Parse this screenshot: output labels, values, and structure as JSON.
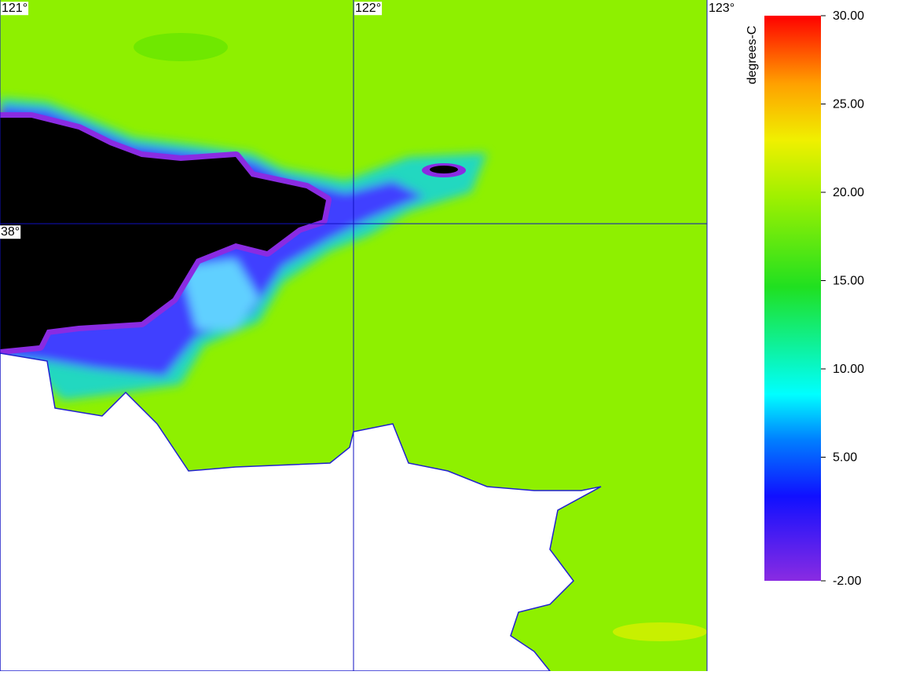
{
  "map": {
    "lon_lines": [
      {
        "value": 121,
        "label": "121°"
      },
      {
        "value": 122,
        "label": "122°"
      },
      {
        "value": 123,
        "label": "123°"
      }
    ],
    "lat_lines": [
      {
        "value": 38,
        "label": "38°"
      }
    ],
    "lonlim": [
      121,
      123
    ],
    "latlim": [
      37.0,
      38.5
    ],
    "colorbar": {
      "label": "degrees-C",
      "lim": [
        -2,
        30
      ],
      "ticks": [
        {
          "value": 30,
          "label": "30.00"
        },
        {
          "value": 25,
          "label": "25.00"
        },
        {
          "value": 20,
          "label": "20.00"
        },
        {
          "value": 15,
          "label": "15.00"
        },
        {
          "value": 10,
          "label": "10.00"
        },
        {
          "value": 5,
          "label": "5.00"
        },
        {
          "value": -2,
          "label": "-2.00"
        }
      ]
    }
  }
}
